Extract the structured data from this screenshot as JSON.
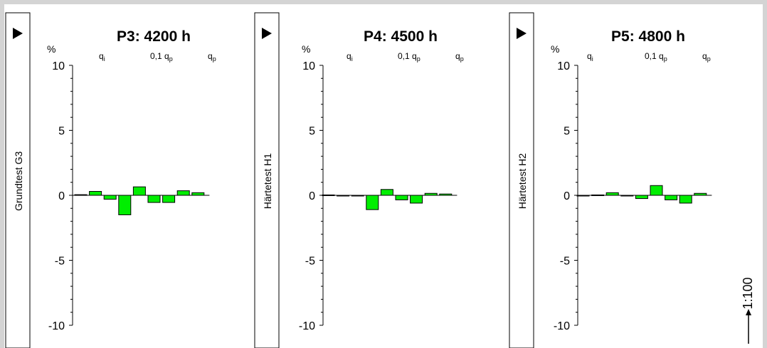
{
  "chart_data": [
    {
      "type": "bar",
      "title": "P3: 4200 h",
      "side_label": "Grundtest G3",
      "unit": "%",
      "ylim": [
        -10,
        10
      ],
      "yticks": [
        "10",
        "5",
        "0",
        "-5",
        "-10"
      ],
      "column_headers": [
        {
          "base": "q",
          "sub": "i"
        },
        {
          "base": "0,1 q",
          "sub": "p"
        },
        {
          "base": "q",
          "sub": "p"
        }
      ],
      "values": [
        0.05,
        0.3,
        -0.3,
        -1.5,
        0.65,
        -0.55,
        -0.55,
        0.35,
        0.2
      ]
    },
    {
      "type": "bar",
      "title": "P4: 4500 h",
      "side_label": "Härtetest H1",
      "unit": "%",
      "ylim": [
        -10,
        10
      ],
      "yticks": [
        "10",
        "5",
        "0",
        "-5",
        "-10"
      ],
      "column_headers": [
        {
          "base": "q",
          "sub": "i"
        },
        {
          "base": "0,1 q",
          "sub": "p"
        },
        {
          "base": "q",
          "sub": "p"
        }
      ],
      "values": [
        0.03,
        -0.05,
        -0.05,
        -1.1,
        0.45,
        -0.35,
        -0.6,
        0.15,
        0.1
      ]
    },
    {
      "type": "bar",
      "title": "P5: 4800 h",
      "side_label": "Härtetest H2",
      "unit": "%",
      "ylim": [
        -10,
        10
      ],
      "yticks": [
        "10",
        "5",
        "0",
        "-5",
        "-10"
      ],
      "column_headers": [
        {
          "base": "q",
          "sub": "i"
        },
        {
          "base": "0,1 q",
          "sub": "p"
        },
        {
          "base": "q",
          "sub": "p"
        }
      ],
      "values": [
        -0.05,
        0.03,
        0.2,
        0.0,
        -0.25,
        0.75,
        -0.35,
        -0.6,
        0.15
      ]
    }
  ],
  "scale_label": "1:100",
  "colors": {
    "bar": "#00ee00",
    "background": "#d4d4d4"
  }
}
